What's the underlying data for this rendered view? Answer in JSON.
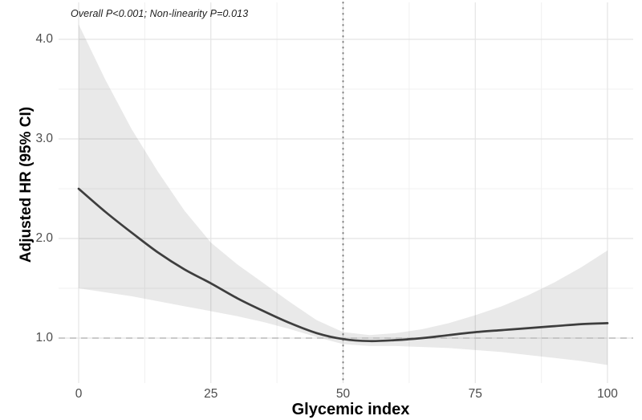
{
  "annotation": "Overall P<0.001; Non-linearity P=0.013",
  "axes": {
    "x_label": "Glycemic index",
    "y_label": "Adjusted HR (95% CI)",
    "x_tick_labels": [
      "0",
      "25",
      "50",
      "75",
      "100"
    ],
    "x_tick_values": [
      0,
      25,
      50,
      75,
      100
    ],
    "y_tick_labels": [
      "1.0",
      "2.0",
      "3.0",
      "4.0"
    ],
    "y_tick_values": [
      1.0,
      2.0,
      3.0,
      4.0
    ]
  },
  "chart_data": {
    "type": "line",
    "title": "",
    "xlabel": "Glycemic index",
    "ylabel": "Adjusted HR (95% CI)",
    "annotation": "Overall P<0.001; Non-linearity P=0.013",
    "x": [
      0,
      5,
      10,
      15,
      20,
      25,
      30,
      35,
      40,
      45,
      50,
      55,
      60,
      65,
      70,
      75,
      80,
      85,
      90,
      95,
      100
    ],
    "series": [
      {
        "name": "Adjusted HR (spline estimate)",
        "values": [
          2.5,
          2.27,
          2.06,
          1.86,
          1.69,
          1.55,
          1.4,
          1.27,
          1.15,
          1.05,
          0.99,
          0.97,
          0.98,
          1.0,
          1.03,
          1.06,
          1.08,
          1.1,
          1.12,
          1.14,
          1.15
        ]
      },
      {
        "name": "95% CI upper bound",
        "values": [
          4.15,
          3.6,
          3.1,
          2.67,
          2.28,
          1.96,
          1.74,
          1.55,
          1.36,
          1.18,
          1.06,
          1.03,
          1.05,
          1.09,
          1.15,
          1.23,
          1.32,
          1.43,
          1.56,
          1.71,
          1.88
        ]
      },
      {
        "name": "95% CI lower bound",
        "values": [
          1.5,
          1.46,
          1.42,
          1.37,
          1.32,
          1.27,
          1.22,
          1.16,
          1.09,
          1.01,
          0.94,
          0.92,
          0.92,
          0.91,
          0.9,
          0.88,
          0.86,
          0.83,
          0.8,
          0.77,
          0.73
        ]
      }
    ],
    "reference_lines": {
      "hline_y": 1.0,
      "vline_x": 50
    },
    "xlim": [
      -4,
      105
    ],
    "ylim": [
      0.55,
      4.35
    ],
    "x_major_gridlines": [
      0,
      25,
      50,
      75,
      100
    ],
    "x_minor_gridlines": [
      12.5,
      37.5,
      62.5,
      87.5
    ],
    "y_major_gridlines": [
      1.0,
      2.0,
      3.0,
      4.0
    ],
    "y_minor_gridlines": [
      1.5,
      2.5,
      3.5
    ],
    "grid": true,
    "legend_position": "none"
  },
  "colors": {
    "background": "#ffffff",
    "curve": "#3e3e3e",
    "ci_band": "rgba(0,0,0,0.085)",
    "grid_major": "#e4e4e4",
    "grid_minor": "#f1f1f1",
    "dashed_refline": "#bcbcbc",
    "dotted_refline": "#7a7a7a",
    "tick_text": "#4d4d4d",
    "title_text": "#000000"
  }
}
